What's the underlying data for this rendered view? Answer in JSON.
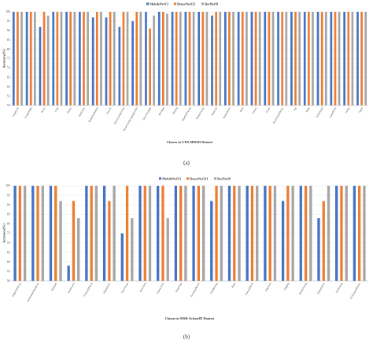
{
  "colors": {
    "MobileNetV2": "#4472c4",
    "DenseNet121": "#ed7d31",
    "ResNet18": "#a5a5a5"
  },
  "chart_data": [
    {
      "type": "bar",
      "caption": "(a)",
      "xlabel": "Classes in UTD-MHAD Dataset",
      "ylabel": "Accuracy(%)",
      "ylim": [
        50,
        100
      ],
      "yticks": [
        50,
        55,
        60,
        65,
        70,
        75,
        80,
        85,
        90,
        95,
        100
      ],
      "legend_position": "top-right",
      "categories": [
        "SwipeLeft",
        "SwipeRight",
        "Wave",
        "Clap",
        "Throw",
        "ArmCross",
        "BasketballShoot",
        "DrawX",
        "DrawCircle(CLW)",
        "DrawCircle(counterCLW)",
        "DrawTriangle",
        "Bowling",
        "Boxing",
        "BaseballSwing",
        "TennisSwing",
        "ArmCurl",
        "TennisServe",
        "Push",
        "Knock",
        "Catch",
        "PickUpandThrow",
        "Jog",
        "Walk",
        "SitToStand",
        "StandToSit",
        "Lunge",
        "Squat"
      ],
      "series": [
        {
          "name": "MobileNetV2",
          "values": [
            100,
            100,
            92,
            100,
            100,
            100,
            97,
            97,
            92,
            95,
            100,
            100,
            100,
            100,
            100,
            98,
            100,
            100,
            100,
            100,
            100,
            100,
            100,
            100,
            100,
            100,
            100
          ]
        },
        {
          "name": "DenseNet121",
          "values": [
            100,
            100,
            100,
            100,
            100,
            100,
            100,
            100,
            100,
            100,
            91,
            100,
            100,
            100,
            100,
            100,
            100,
            100,
            100,
            100,
            100,
            100,
            100,
            100,
            100,
            100,
            100
          ]
        },
        {
          "name": "ResNet18",
          "values": [
            100,
            100,
            98,
            100,
            100,
            100,
            100,
            100,
            100,
            100,
            98,
            99,
            100,
            100,
            100,
            100,
            100,
            100,
            100,
            100,
            100,
            100,
            100,
            100,
            100,
            100,
            100
          ]
        }
      ]
    },
    {
      "type": "bar",
      "caption": "(b)",
      "xlabel": "Classes in MSR-Action3D Dataset",
      "ylabel": "Accuracy(%)",
      "ylim": [
        50,
        100
      ],
      "yticks": [
        50,
        55,
        60,
        65,
        70,
        75,
        80,
        85,
        90,
        95,
        100
      ],
      "legend_position": "top-right",
      "categories": [
        "HighArmWave",
        "HorizontalArmWave",
        "Hammer",
        "HandCatch",
        "ForwardPunch",
        "HighThrow",
        "DrawCross",
        "DrawTick",
        "DrawCircle",
        "HandClap",
        "TwoHandWave",
        "SideBoxing",
        "Bend",
        "ForwardKick",
        "SideKick",
        "Jogging",
        "TennisSwing",
        "TennisServe",
        "GolfSwing",
        "PickUpandThrow"
      ],
      "series": [
        {
          "name": "MobileNetV2",
          "values": [
            100,
            100,
            100,
            58,
            100,
            100,
            75,
            100,
            100,
            100,
            100,
            92,
            100,
            100,
            100,
            92,
            100,
            83,
            100,
            100
          ]
        },
        {
          "name": "DenseNet121",
          "values": [
            100,
            100,
            100,
            92,
            100,
            92,
            100,
            100,
            100,
            100,
            100,
            100,
            100,
            100,
            100,
            100,
            100,
            92,
            100,
            100
          ]
        },
        {
          "name": "ResNet18",
          "values": [
            100,
            100,
            92,
            83,
            100,
            100,
            83,
            100,
            83,
            100,
            100,
            100,
            100,
            100,
            100,
            100,
            100,
            100,
            100,
            100
          ]
        }
      ]
    }
  ]
}
